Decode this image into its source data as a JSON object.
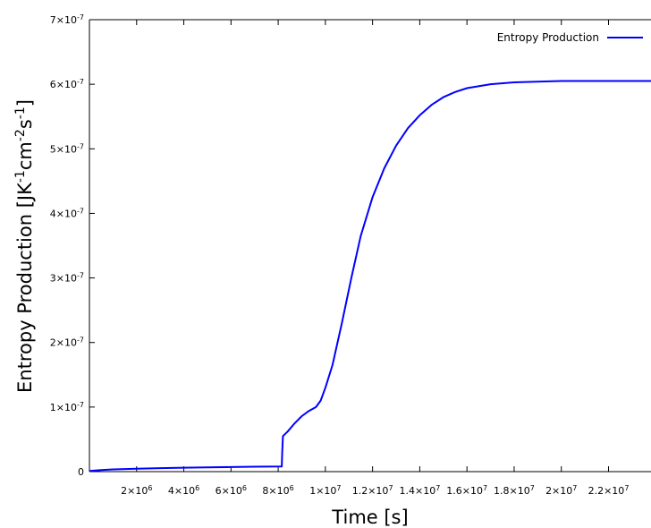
{
  "chart_data": {
    "type": "line",
    "xlabel": "Time [s]",
    "ylabel": "Entropy Production [JK-1cm-2s-1]",
    "xlim": [
      0,
      23800000
    ],
    "ylim": [
      0,
      7e-07
    ],
    "grid": false,
    "legend_position": "top-right",
    "x_ticks": [
      {
        "value": 2000000,
        "mantissa": "2×10",
        "exp": "6"
      },
      {
        "value": 4000000,
        "mantissa": "4×10",
        "exp": "6"
      },
      {
        "value": 6000000,
        "mantissa": "6×10",
        "exp": "6"
      },
      {
        "value": 8000000,
        "mantissa": "8×10",
        "exp": "6"
      },
      {
        "value": 10000000,
        "mantissa": "1×10",
        "exp": "7"
      },
      {
        "value": 12000000,
        "mantissa": "1.2×10",
        "exp": "7"
      },
      {
        "value": 14000000,
        "mantissa": "1.4×10",
        "exp": "7"
      },
      {
        "value": 16000000,
        "mantissa": "1.6×10",
        "exp": "7"
      },
      {
        "value": 18000000,
        "mantissa": "1.8×10",
        "exp": "7"
      },
      {
        "value": 20000000,
        "mantissa": "2×10",
        "exp": "7"
      },
      {
        "value": 22000000,
        "mantissa": "2.2×10",
        "exp": "7"
      }
    ],
    "y_ticks": [
      {
        "value": 0,
        "mantissa": "0",
        "exp": ""
      },
      {
        "value": 1e-07,
        "mantissa": "1×10",
        "exp": "-7"
      },
      {
        "value": 2e-07,
        "mantissa": "2×10",
        "exp": "-7"
      },
      {
        "value": 3e-07,
        "mantissa": "3×10",
        "exp": "-7"
      },
      {
        "value": 4e-07,
        "mantissa": "4×10",
        "exp": "-7"
      },
      {
        "value": 5e-07,
        "mantissa": "5×10",
        "exp": "-7"
      },
      {
        "value": 6e-07,
        "mantissa": "6×10",
        "exp": "-7"
      },
      {
        "value": 7e-07,
        "mantissa": "7×10",
        "exp": "-7"
      }
    ],
    "series": [
      {
        "name": "Entropy Production",
        "color": "#0000ff",
        "points": [
          [
            0,
            1e-09
          ],
          [
            500000,
            2.5e-09
          ],
          [
            1000000,
            3.5e-09
          ],
          [
            2000000,
            4.6e-09
          ],
          [
            3000000,
            5.4e-09
          ],
          [
            4000000,
            6.1e-09
          ],
          [
            5000000,
            6.6e-09
          ],
          [
            6000000,
            7.1e-09
          ],
          [
            7000000,
            7.6e-09
          ],
          [
            8150000,
            8.1e-09
          ],
          [
            8170000,
            3e-08
          ],
          [
            8200000,
            5.5e-08
          ],
          [
            8400000,
            6.2e-08
          ],
          [
            8700000,
            7.5e-08
          ],
          [
            9000000,
            8.6e-08
          ],
          [
            9300000,
            9.4e-08
          ],
          [
            9600000,
            1e-07
          ],
          [
            9800000,
            1.1e-07
          ],
          [
            10000000,
            1.3e-07
          ],
          [
            10300000,
            1.65e-07
          ],
          [
            10700000,
            2.3e-07
          ],
          [
            11100000,
            3e-07
          ],
          [
            11500000,
            3.65e-07
          ],
          [
            12000000,
            4.25e-07
          ],
          [
            12500000,
            4.7e-07
          ],
          [
            13000000,
            5.05e-07
          ],
          [
            13500000,
            5.32e-07
          ],
          [
            14000000,
            5.52e-07
          ],
          [
            14500000,
            5.68e-07
          ],
          [
            15000000,
            5.8e-07
          ],
          [
            15500000,
            5.88e-07
          ],
          [
            16000000,
            5.94e-07
          ],
          [
            17000000,
            6e-07
          ],
          [
            18000000,
            6.03e-07
          ],
          [
            19000000,
            6.04e-07
          ],
          [
            20000000,
            6.05e-07
          ],
          [
            21000000,
            6.05e-07
          ],
          [
            22000000,
            6.05e-07
          ],
          [
            23800000,
            6.05e-07
          ]
        ]
      }
    ]
  }
}
